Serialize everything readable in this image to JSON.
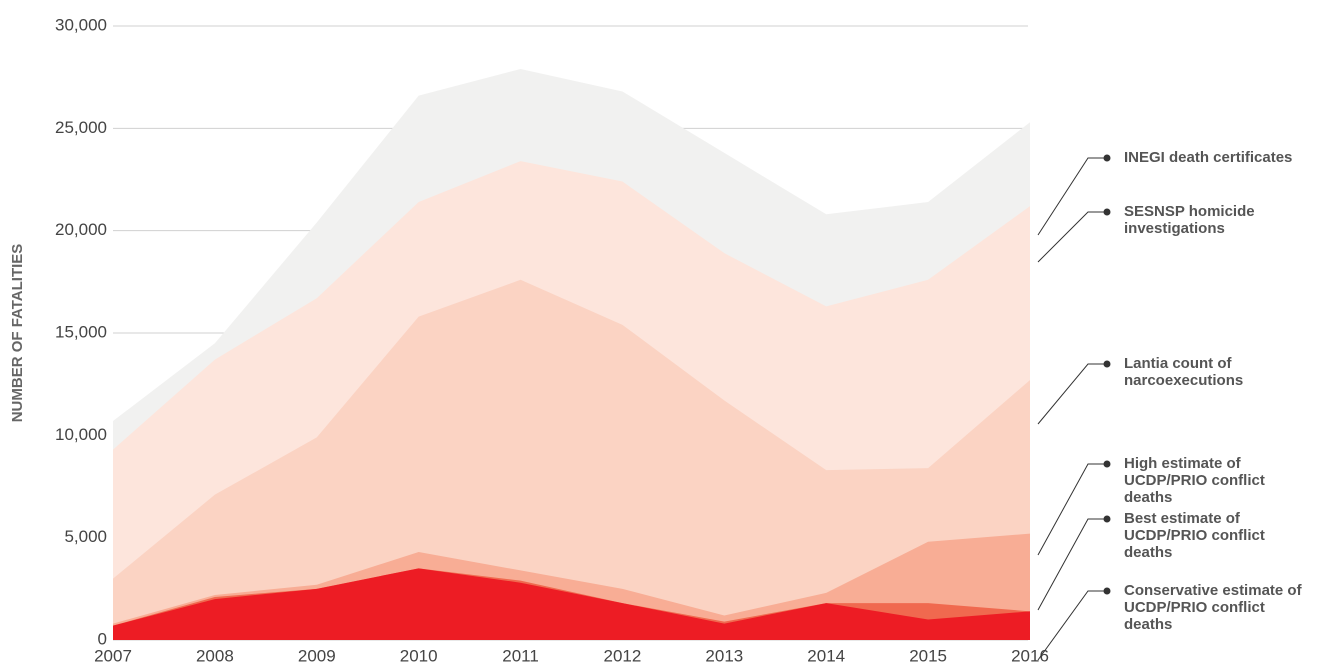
{
  "chart_data": {
    "type": "area",
    "ylabel": "NUMBER OF FATALITIES",
    "categories": [
      "2007",
      "2008",
      "2009",
      "2010",
      "2011",
      "2012",
      "2013",
      "2014",
      "2015",
      "2016"
    ],
    "series": [
      {
        "name": "INEGI death certificates",
        "color": "#f1f1f0",
        "values": [
          10700,
          14500,
          20400,
          26600,
          27900,
          26800,
          23800,
          20800,
          21400,
          25300
        ]
      },
      {
        "name": "SESNSP homicide investigations",
        "color": "#fde5dc",
        "values": [
          9300,
          13700,
          16700,
          21400,
          23400,
          22400,
          18900,
          16300,
          17600,
          21200
        ]
      },
      {
        "name": "Lantia count of narcoexecutions",
        "color": "#fbd3c3",
        "values": [
          3000,
          7100,
          9900,
          15800,
          17600,
          15400,
          11700,
          8300,
          8400,
          12700
        ]
      },
      {
        "name": "High estimate of UCDP/PRIO conflict deaths",
        "color": "#f8ad95",
        "values": [
          800,
          2200,
          2700,
          4300,
          3400,
          2500,
          1200,
          2300,
          4800,
          5200
        ]
      },
      {
        "name": "Best estimate of UCDP/PRIO conflict deaths",
        "color": "#f0694f",
        "values": [
          700,
          2100,
          2500,
          3500,
          2900,
          1800,
          900,
          1800,
          1800,
          1400
        ]
      },
      {
        "name": "Conservative estimate of UCDP/PRIO conflict deaths",
        "color": "#ed1c24",
        "values": [
          700,
          2000,
          2500,
          3500,
          2800,
          1800,
          800,
          1800,
          1000,
          1400
        ]
      }
    ],
    "ylim": [
      0,
      30000
    ],
    "yticks": [
      0,
      {
        "value": 5000,
        "label": "5,000"
      },
      {
        "value": 10000,
        "label": "10,000"
      },
      {
        "value": 15000,
        "label": "15,000"
      },
      {
        "value": 20000,
        "label": "20,000"
      },
      {
        "value": 25000,
        "label": "25,000"
      },
      {
        "value": 30000,
        "label": "30,000"
      }
    ],
    "grid": true
  }
}
